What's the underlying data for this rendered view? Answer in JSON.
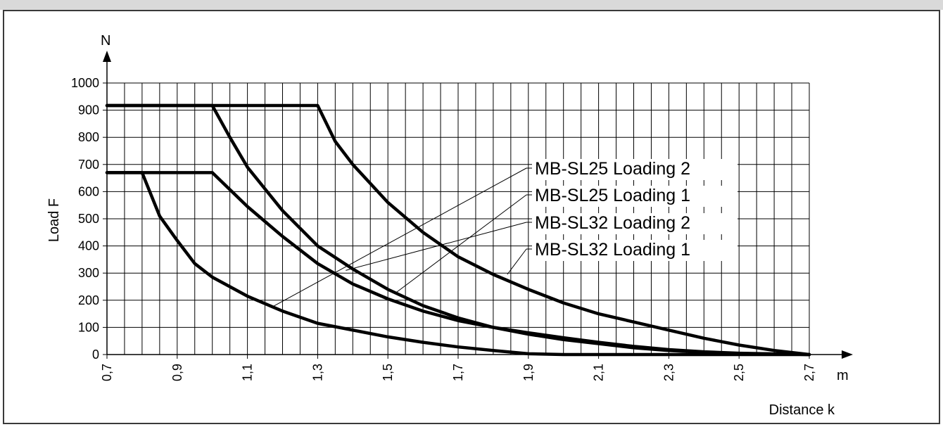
{
  "chart_data": {
    "type": "line",
    "title": "",
    "xlabel": "Distance k",
    "ylabel": "Load F",
    "x_unit": "m",
    "y_unit": "N",
    "xlim": [
      0.7,
      2.7
    ],
    "ylim": [
      0,
      1000
    ],
    "x_ticks": [
      0.7,
      0.9,
      1.1,
      1.3,
      1.5,
      1.7,
      1.9,
      2.1,
      2.3,
      2.5,
      2.7
    ],
    "x_tick_labels": [
      "0,7",
      "0,9",
      "1,1",
      "1,3",
      "1,5",
      "1,7",
      "1,9",
      "2,1",
      "2,3",
      "2,5",
      "2,7"
    ],
    "y_ticks": [
      0,
      100,
      200,
      300,
      400,
      500,
      600,
      700,
      800,
      900,
      1000
    ],
    "y_tick_labels": [
      "0",
      "100",
      "200",
      "300",
      "400",
      "500",
      "600",
      "700",
      "800",
      "900",
      "1000"
    ],
    "grid": true,
    "grid_x_step": 0.05,
    "grid_y_step": 100,
    "series": [
      {
        "name": "MB-SL25 Loading 2",
        "x": [
          0.7,
          0.8,
          0.85,
          0.9,
          0.95,
          1.0,
          1.1,
          1.2,
          1.3,
          1.4,
          1.5,
          1.6,
          1.7,
          1.8,
          1.9,
          2.0,
          2.2,
          2.7
        ],
        "y": [
          670,
          670,
          510,
          420,
          335,
          285,
          215,
          160,
          115,
          90,
          65,
          45,
          28,
          15,
          3,
          0,
          0,
          0
        ],
        "leader_point": [
          1.17,
          175
        ]
      },
      {
        "name": "MB-SL25 Loading 1",
        "x": [
          0.7,
          1.0,
          1.1,
          1.2,
          1.3,
          1.4,
          1.5,
          1.6,
          1.7,
          1.8,
          1.9,
          2.0,
          2.1,
          2.2,
          2.3,
          2.4,
          2.5,
          2.7
        ],
        "y": [
          670,
          670,
          545,
          435,
          335,
          260,
          205,
          160,
          125,
          100,
          80,
          62,
          45,
          30,
          18,
          10,
          5,
          0
        ],
        "leader_point": [
          1.52,
          225
        ]
      },
      {
        "name": "MB-SL32 Loading 2",
        "x": [
          0.7,
          1.0,
          1.05,
          1.1,
          1.2,
          1.3,
          1.4,
          1.5,
          1.6,
          1.7,
          1.8,
          1.9,
          2.0,
          2.1,
          2.2,
          2.3,
          2.4,
          2.5,
          2.7
        ],
        "y": [
          917,
          917,
          800,
          690,
          530,
          400,
          315,
          240,
          180,
          135,
          100,
          75,
          55,
          40,
          25,
          15,
          8,
          4,
          0
        ],
        "leader_point": [
          1.38,
          310
        ]
      },
      {
        "name": "MB-SL32 Loading 1",
        "x": [
          0.7,
          1.3,
          1.35,
          1.4,
          1.5,
          1.6,
          1.7,
          1.8,
          1.9,
          2.0,
          2.1,
          2.2,
          2.3,
          2.4,
          2.5,
          2.6,
          2.7
        ],
        "y": [
          917,
          917,
          785,
          700,
          560,
          450,
          360,
          295,
          240,
          190,
          150,
          120,
          90,
          60,
          35,
          15,
          0
        ],
        "leader_point": [
          1.84,
          295
        ]
      }
    ]
  },
  "colors": {
    "curve": "#000000",
    "grid": "#000000",
    "frame": "#3a3a3a",
    "top_band": "#d9d9d9"
  }
}
